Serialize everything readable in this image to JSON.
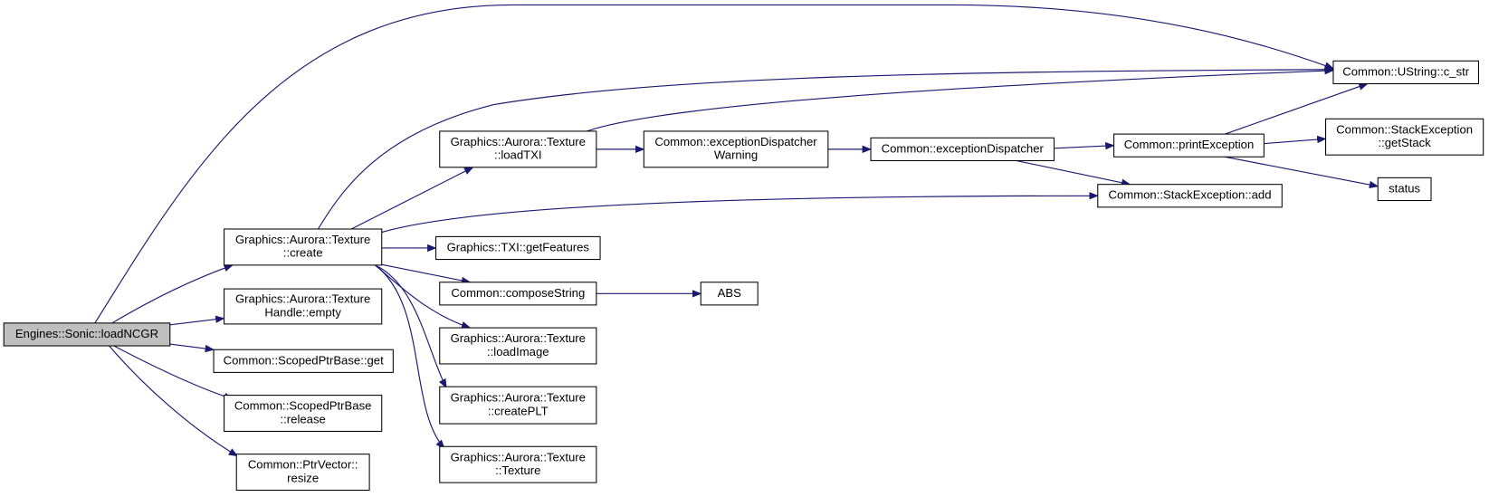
{
  "nodes": [
    {
      "lines": [
        "Engines::Sonic::loadNCGR"
      ]
    },
    {
      "lines": [
        "Graphics::Aurora::Texture",
        "::create"
      ]
    },
    {
      "lines": [
        "Graphics::Aurora::Texture",
        "Handle::empty"
      ]
    },
    {
      "lines": [
        "Common::ScopedPtrBase::get"
      ]
    },
    {
      "lines": [
        "Common::ScopedPtrBase",
        "::release"
      ]
    },
    {
      "lines": [
        "Common::PtrVector::",
        "resize"
      ]
    },
    {
      "lines": [
        "Graphics::Aurora::Texture",
        "::loadTXI"
      ]
    },
    {
      "lines": [
        "Graphics::TXI::getFeatures"
      ]
    },
    {
      "lines": [
        "Common::composeString"
      ]
    },
    {
      "lines": [
        "Graphics::Aurora::Texture",
        "::loadImage"
      ]
    },
    {
      "lines": [
        "Graphics::Aurora::Texture",
        "::createPLT"
      ]
    },
    {
      "lines": [
        "Graphics::Aurora::Texture",
        "::Texture"
      ]
    },
    {
      "lines": [
        "Common::exceptionDispatcher",
        "Warning"
      ]
    },
    {
      "lines": [
        "ABS"
      ]
    },
    {
      "lines": [
        "Common::exceptionDispatcher"
      ]
    },
    {
      "lines": [
        "Common::printException"
      ]
    },
    {
      "lines": [
        "Common::StackException::add"
      ]
    },
    {
      "lines": [
        "Common::UString::c_str"
      ]
    },
    {
      "lines": [
        "Common::StackException",
        "::getStack"
      ]
    },
    {
      "lines": [
        "status"
      ]
    }
  ]
}
